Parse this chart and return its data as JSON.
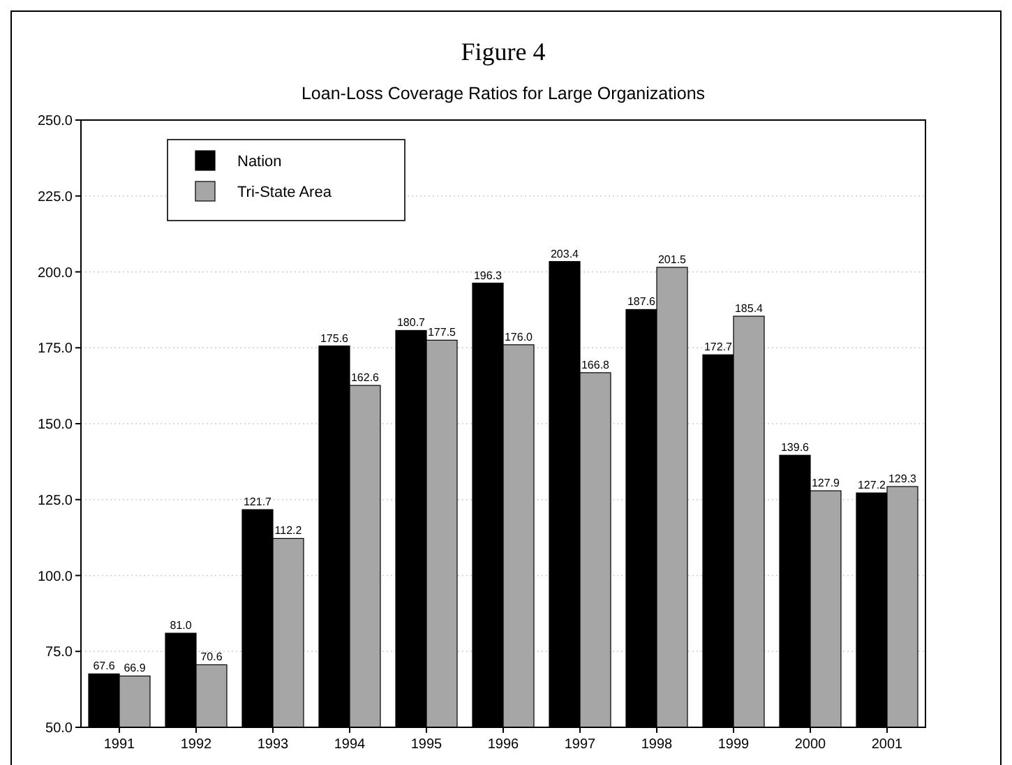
{
  "chart_data": {
    "type": "bar",
    "title": "Figure 4",
    "subtitle": "Loan-Loss Coverage Ratios for Large Organizations",
    "categories": [
      "1991",
      "1992",
      "1993",
      "1994",
      "1995",
      "1996",
      "1997",
      "1998",
      "1999",
      "2000",
      "2001"
    ],
    "series": [
      {
        "name": "Nation",
        "color": "#000000",
        "values": [
          67.6,
          81.0,
          121.7,
          175.6,
          180.7,
          196.3,
          203.4,
          187.6,
          172.7,
          139.6,
          127.2
        ],
        "value_labels": [
          "67.6",
          "81.0",
          "121.7",
          "175.6",
          "180.7",
          "196.3",
          "203.4",
          "187.6",
          "172.7",
          "139.6",
          "127.2"
        ]
      },
      {
        "name": "Tri-State Area",
        "color": "#a6a6a6",
        "values": [
          66.9,
          70.6,
          112.2,
          162.6,
          177.5,
          176.0,
          166.8,
          201.5,
          185.4,
          127.9,
          129.3
        ],
        "value_labels": [
          "66.9",
          "70.6",
          "112.2",
          "162.6",
          "177.5",
          "176.0",
          "166.8",
          "201.5",
          "185.4",
          "127.9",
          "129.3"
        ]
      }
    ],
    "ylim": [
      50,
      250
    ],
    "yticks": [
      {
        "value": 50,
        "label": "50.0"
      },
      {
        "value": 75,
        "label": "75.0"
      },
      {
        "value": 100,
        "label": "100.0"
      },
      {
        "value": 125,
        "label": "125.0"
      },
      {
        "value": 150,
        "label": "150.0"
      },
      {
        "value": 175,
        "label": "175.0"
      },
      {
        "value": 200,
        "label": "200.0"
      },
      {
        "value": 225,
        "label": "225.0"
      },
      {
        "value": 250,
        "label": "250.0"
      }
    ],
    "grid": "y",
    "legend": "top left"
  }
}
